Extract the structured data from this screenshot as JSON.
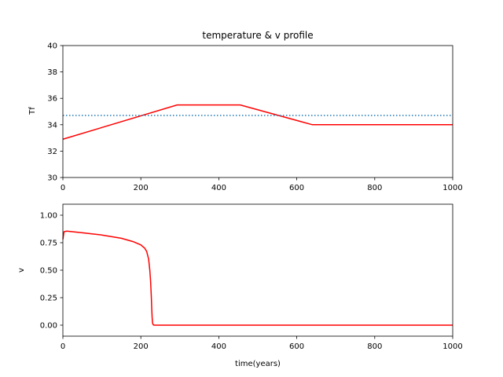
{
  "chart_data": [
    {
      "type": "line",
      "title": "temperature & v profile",
      "xlabel": "",
      "ylabel": "Tf",
      "xlim": [
        0,
        1000
      ],
      "ylim": [
        30,
        40
      ],
      "xticks": [
        0,
        200,
        400,
        600,
        800,
        1000
      ],
      "yticks": [
        30,
        32,
        34,
        36,
        38,
        40
      ],
      "grid": false,
      "series": [
        {
          "style": "solid",
          "color": "#ff0000",
          "x": [
            0,
            293,
            455,
            640,
            1000
          ],
          "y": [
            32.9,
            35.5,
            35.5,
            34.0,
            34.0
          ]
        },
        {
          "style": "dotted",
          "color": "#1f77b4",
          "x": [
            0,
            1000
          ],
          "y": [
            34.7,
            34.7
          ]
        }
      ]
    },
    {
      "type": "line",
      "title": "",
      "xlabel": "time(years)",
      "ylabel": "v",
      "xlim": [
        0,
        1000
      ],
      "ylim": [
        -0.1,
        1.1
      ],
      "xticks": [
        0,
        200,
        400,
        600,
        800,
        1000
      ],
      "yticks": [
        "0.00",
        "0.25",
        "0.50",
        "0.75",
        "1.00"
      ],
      "grid": false,
      "series": [
        {
          "style": "solid",
          "color": "#ff0000",
          "x": [
            0,
            3,
            10,
            50,
            100,
            150,
            180,
            200,
            210,
            215,
            220,
            223,
            225,
            227,
            228,
            229,
            230,
            232,
            235,
            250,
            400,
            600,
            800,
            1000
          ],
          "y": [
            0.78,
            0.85,
            0.855,
            0.84,
            0.82,
            0.79,
            0.76,
            0.73,
            0.7,
            0.67,
            0.6,
            0.5,
            0.4,
            0.25,
            0.15,
            0.07,
            0.02,
            0.003,
            0.0,
            0.0,
            0.0,
            0.0,
            0.0,
            0.0
          ]
        }
      ]
    }
  ]
}
